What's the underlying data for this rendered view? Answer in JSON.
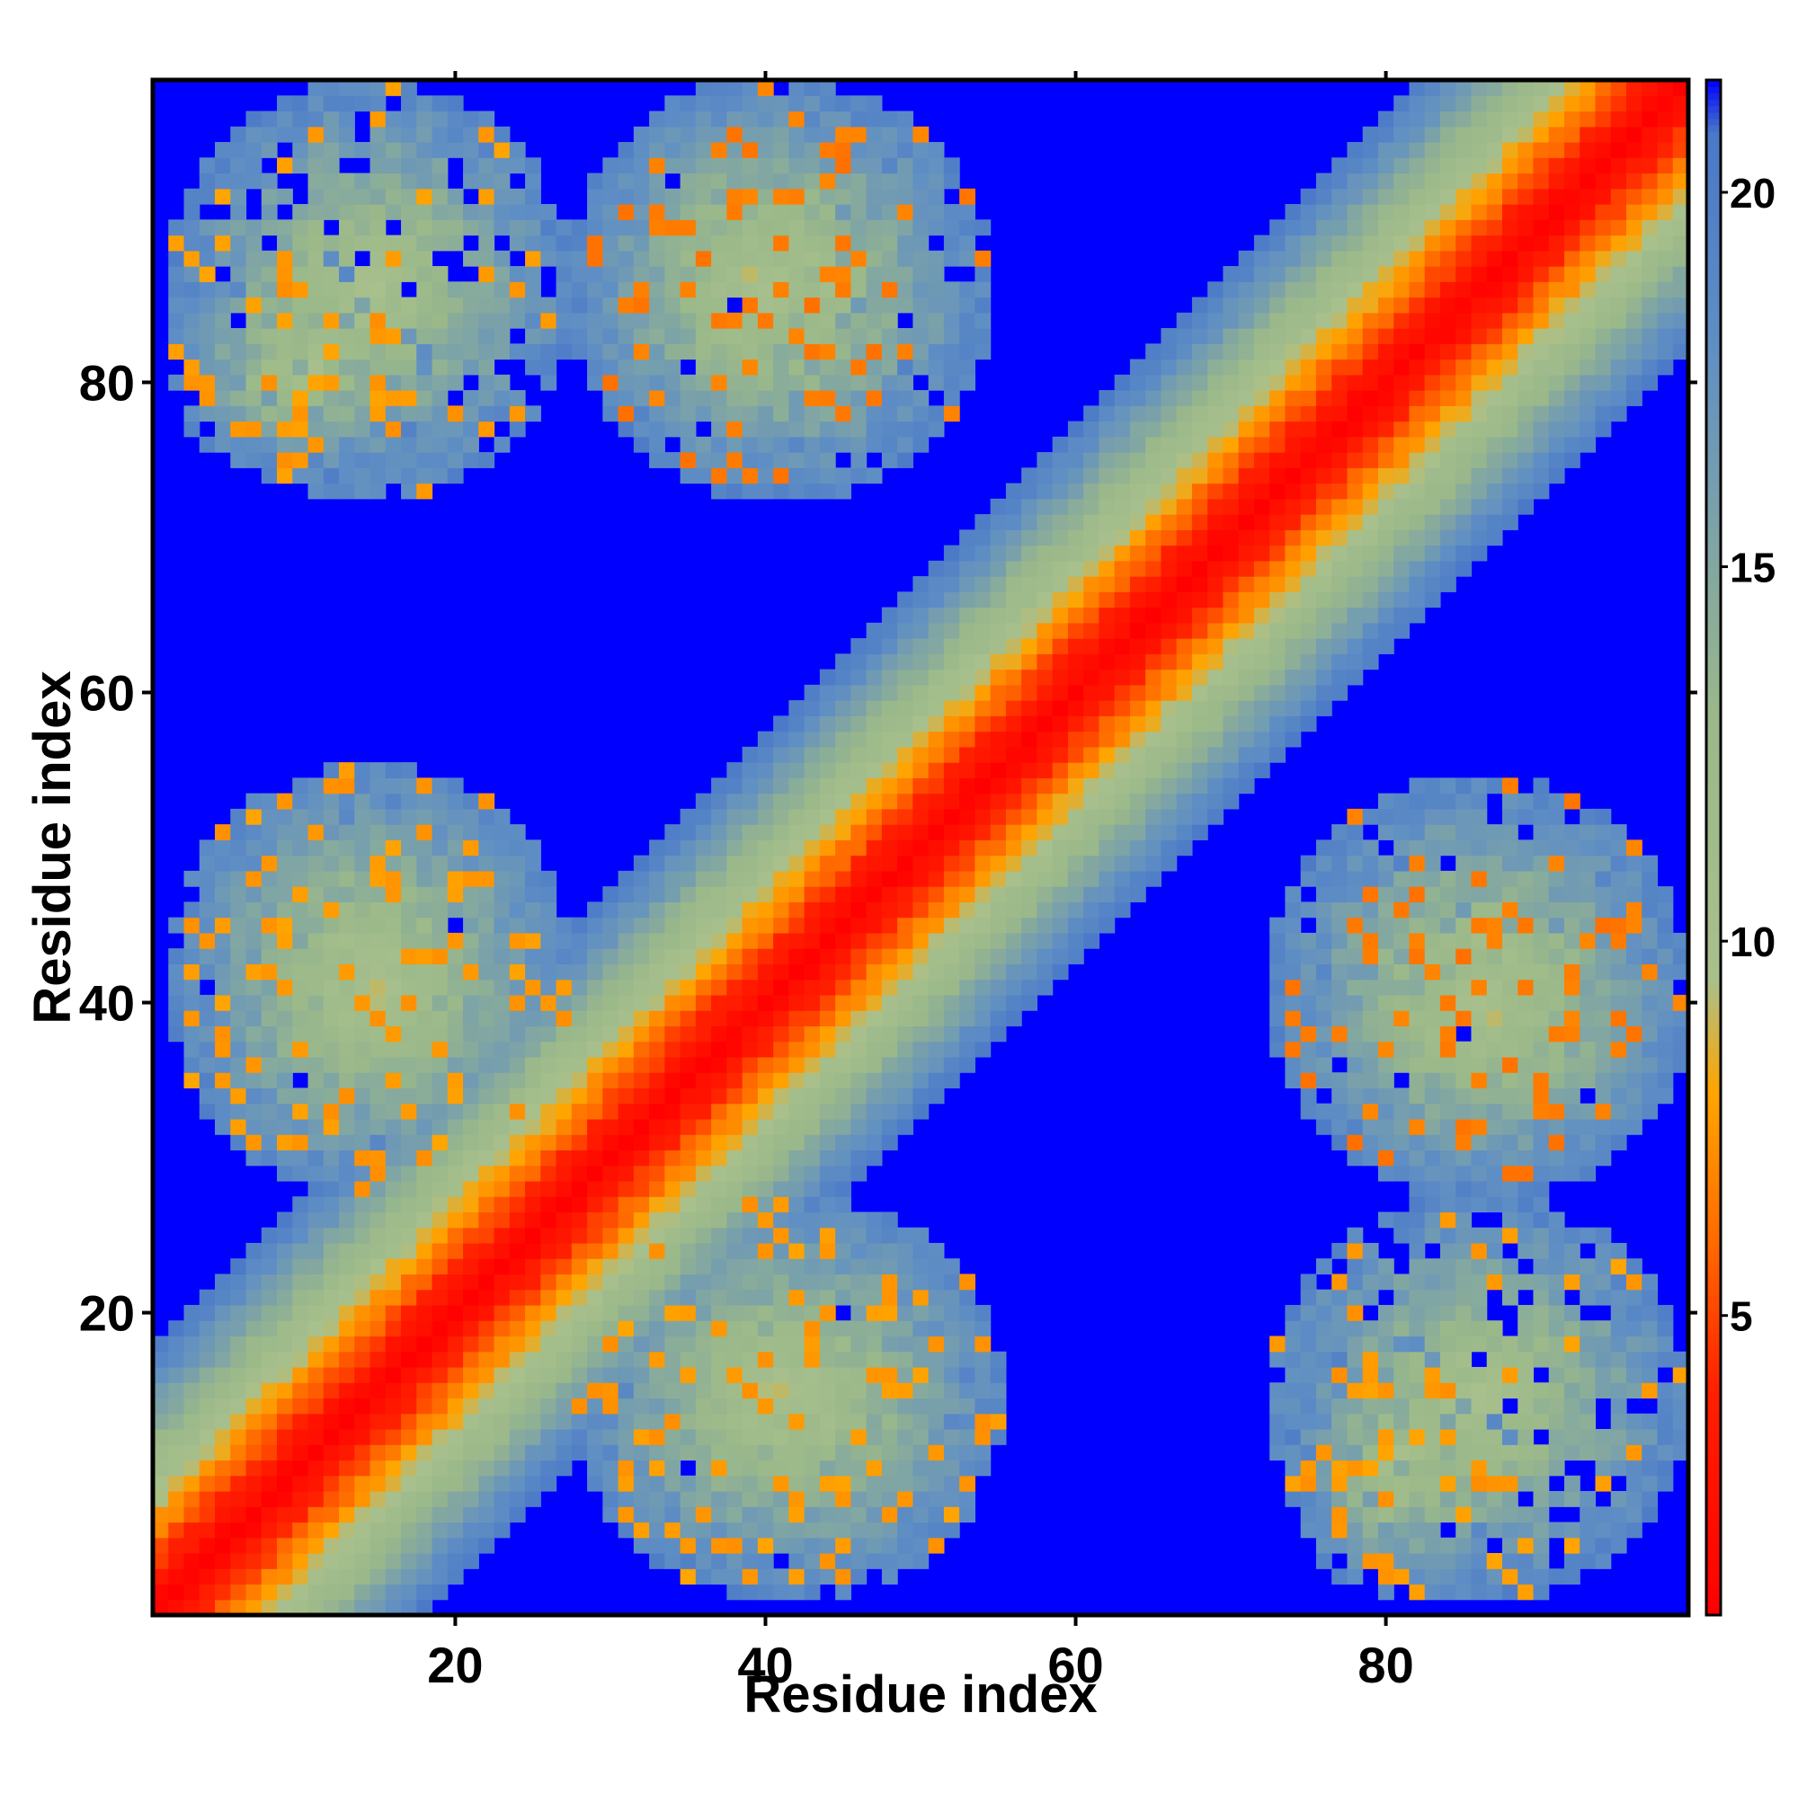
{
  "chart_data": {
    "type": "heatmap",
    "title": "",
    "xlabel": "Residue index",
    "ylabel": "Residue index",
    "n": 99,
    "xlim": [
      1,
      99
    ],
    "ylim": [
      1,
      99
    ],
    "x_ticks": [
      20,
      40,
      60,
      80
    ],
    "y_ticks": [
      20,
      40,
      60,
      80
    ],
    "x_tick_labels": [
      "20",
      "40",
      "60",
      "80"
    ],
    "y_tick_labels": [
      "20",
      "40",
      "60",
      "80"
    ],
    "colorbar": {
      "range": [
        1,
        21.5
      ],
      "ticks": [
        5,
        10,
        15,
        20
      ],
      "tick_labels": [
        "5",
        "10",
        "15",
        "20"
      ],
      "stops": [
        {
          "value": 1,
          "color": "#ff0000"
        },
        {
          "value": 4,
          "color": "#ff2000"
        },
        {
          "value": 6,
          "color": "#ff6a00"
        },
        {
          "value": 8,
          "color": "#ffa500"
        },
        {
          "value": 9.5,
          "color": "#a8c08c"
        },
        {
          "value": 13,
          "color": "#9ab88a"
        },
        {
          "value": 18,
          "color": "#5f8ec4"
        },
        {
          "value": 20.8,
          "color": "#4a78c8"
        },
        {
          "value": 21.5,
          "color": "#0000ff"
        }
      ]
    },
    "cutoff_color": "#0000ff",
    "contact_regions": [
      {
        "description": "main diagonal band",
        "from": [
          1,
          1
        ],
        "to": [
          99,
          99
        ],
        "min_distance": 1,
        "width_residues": 18
      },
      {
        "x_range": [
          2,
          18
        ],
        "y_range": [
          74,
          88
        ],
        "min_distance": 6
      },
      {
        "x_range": [
          28,
          50
        ],
        "y_range": [
          74,
          99
        ],
        "min_distance": 5
      },
      {
        "x_range": [
          3,
          27
        ],
        "y_range": [
          28,
          54
        ],
        "min_distance": 6
      },
      {
        "x_range": [
          28,
          55
        ],
        "y_range": [
          2,
          27
        ],
        "min_distance": 6
      },
      {
        "x_range": [
          73,
          99
        ],
        "y_range": [
          28,
          54
        ],
        "min_distance": 5
      },
      {
        "x_range": [
          73,
          99
        ],
        "y_range": [
          2,
          27
        ],
        "min_distance": 6
      }
    ]
  }
}
